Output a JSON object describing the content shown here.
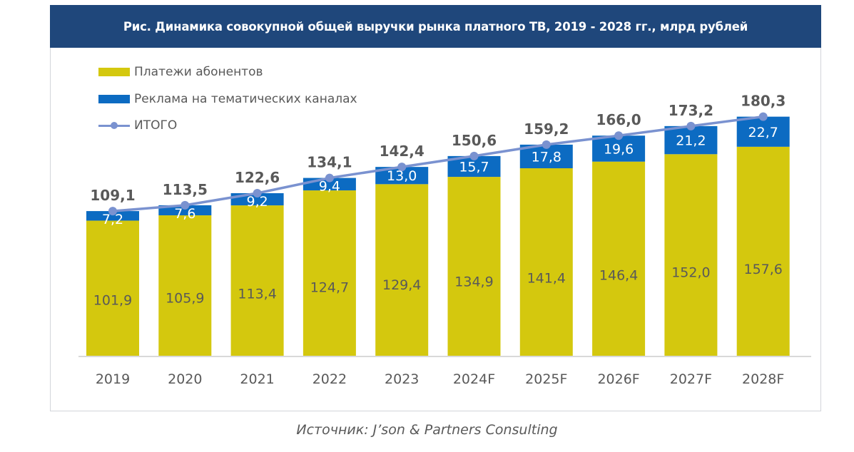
{
  "title": "Рис. Динамика совокупной общей выручки рынка платного ТВ, 2019 - 2028 гг., млрд рублей",
  "source": "Источник: J’son & Partners Consulting",
  "colors": {
    "title_bg": "#1f477b",
    "subscribers": "#d4c80e",
    "advertising": "#0c6bc2",
    "total_line": "#7a92d0",
    "label_dark": "#595959",
    "label_light": "#ffffff",
    "axis": "#d9d9d9"
  },
  "legend": [
    {
      "key": "subscribers",
      "label": "Платежи абонентов",
      "kind": "bar"
    },
    {
      "key": "advertising",
      "label": "Реклама на тематических каналах",
      "kind": "bar"
    },
    {
      "key": "total",
      "label": "ИТОГО",
      "kind": "line"
    }
  ],
  "chart_data": {
    "type": "bar",
    "stacked": true,
    "title": "Рис. Динамика совокупной общей выручки рынка платного ТВ, 2019 - 2028 гг., млрд рублей",
    "xlabel": "",
    "ylabel": "",
    "unit": "млрд рублей",
    "categories": [
      "2019",
      "2020",
      "2021",
      "2022",
      "2023",
      "2024F",
      "2025F",
      "2026F",
      "2027F",
      "2028F"
    ],
    "series": [
      {
        "name": "Платежи абонентов",
        "type": "bar",
        "values": [
          101.9,
          105.9,
          113.4,
          124.7,
          129.4,
          134.9,
          141.4,
          146.4,
          152.0,
          157.6
        ],
        "labels": [
          "101,9",
          "105,9",
          "113,4",
          "124,7",
          "129,4",
          "134,9",
          "141,4",
          "146,4",
          "152,0",
          "157,6"
        ]
      },
      {
        "name": "Реклама на тематических каналах",
        "type": "bar",
        "values": [
          7.2,
          7.6,
          9.2,
          9.4,
          13.0,
          15.7,
          17.8,
          19.6,
          21.2,
          22.7
        ],
        "labels": [
          "7,2",
          "7,6",
          "9,2",
          "9,4",
          "13,0",
          "15,7",
          "17,8",
          "19,6",
          "21,2",
          "22,7"
        ]
      },
      {
        "name": "ИТОГО",
        "type": "line",
        "values": [
          109.1,
          113.5,
          122.6,
          134.1,
          142.4,
          150.6,
          159.2,
          166.0,
          173.2,
          180.3
        ],
        "labels": [
          "109,1",
          "113,5",
          "122,6",
          "134,1",
          "142,4",
          "150,6",
          "159,2",
          "166,0",
          "173,2",
          "180,3"
        ]
      }
    ],
    "ylim": [
      0,
      190
    ],
    "grid": false,
    "legend_position": "top-left",
    "source": "Источник: J’son & Partners Consulting"
  }
}
